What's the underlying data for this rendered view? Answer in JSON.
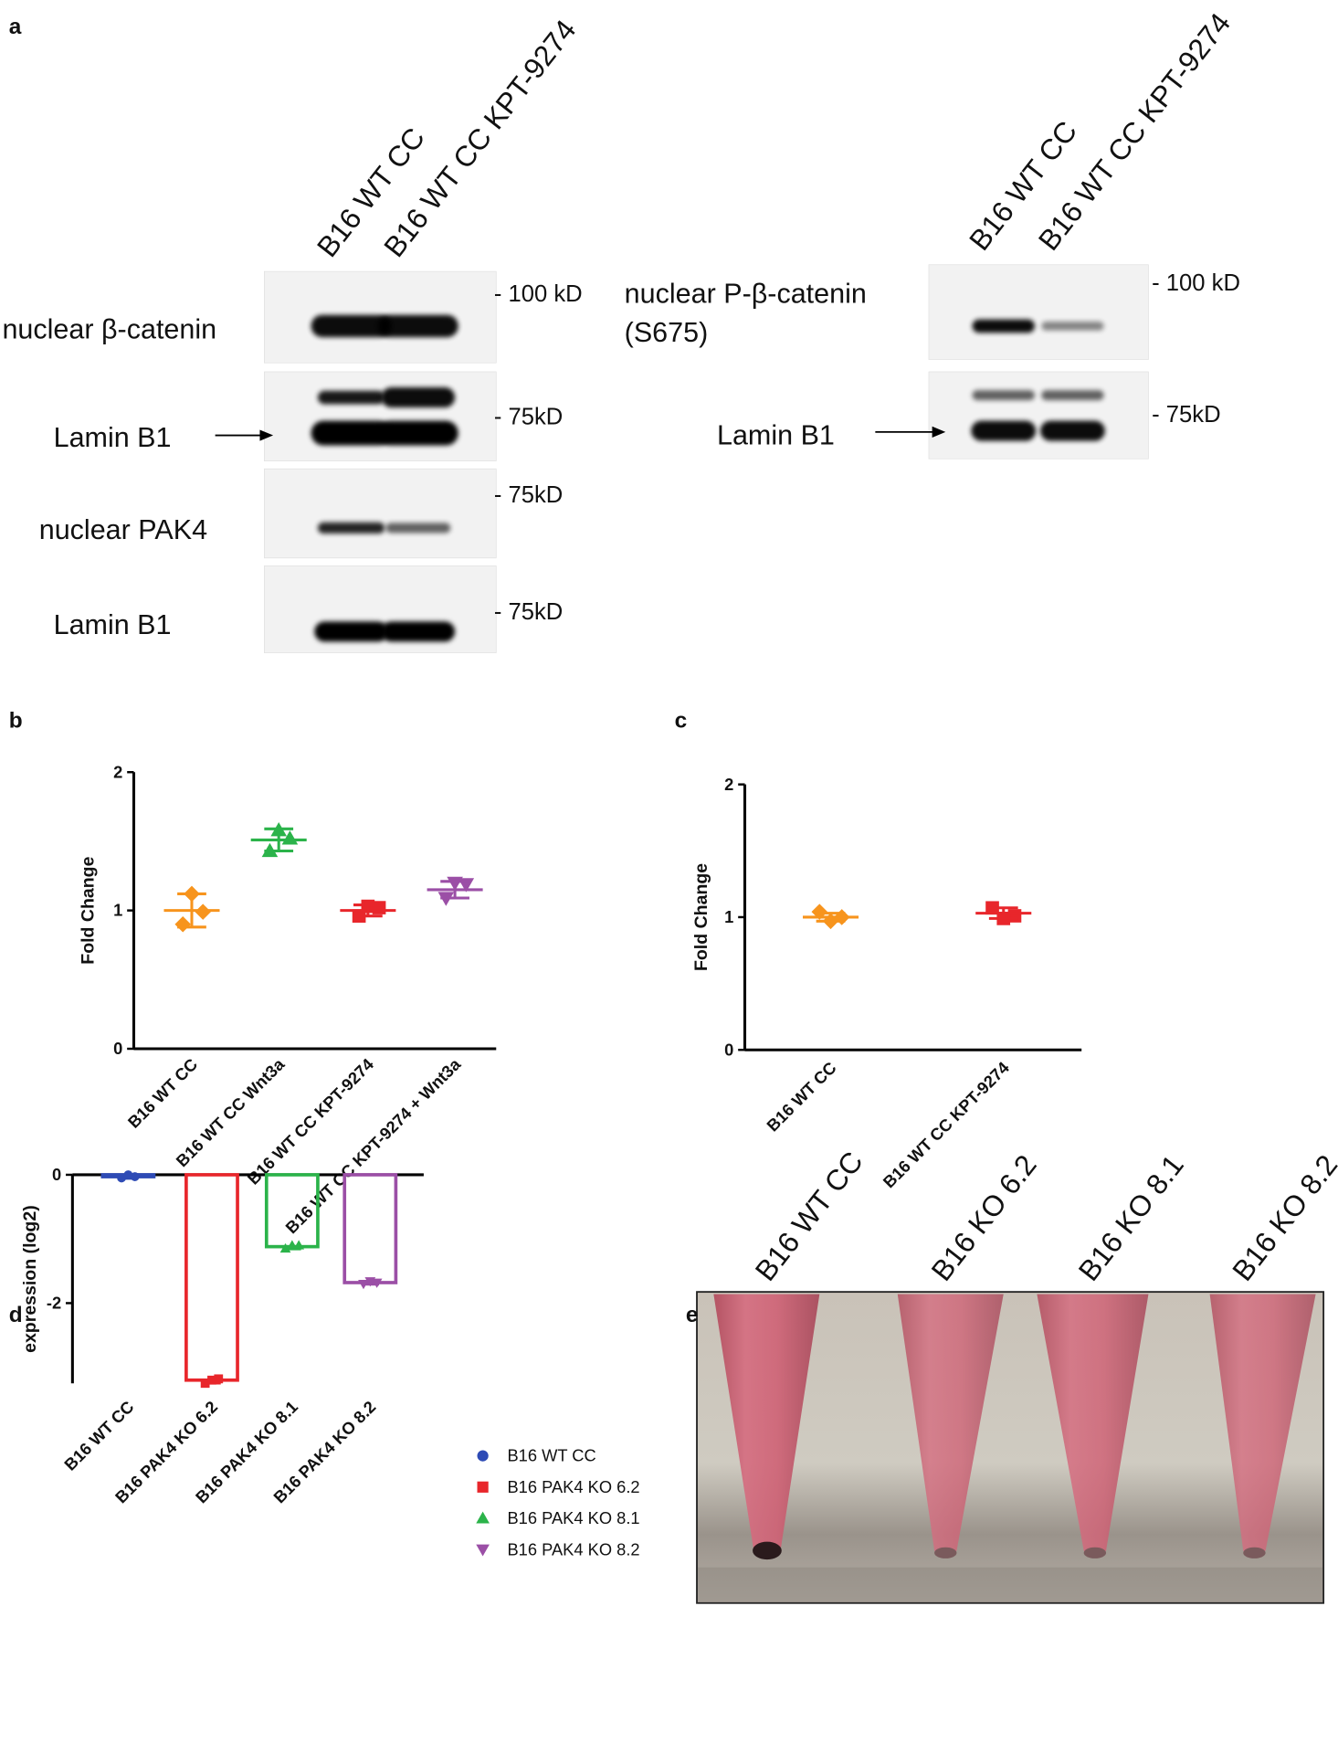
{
  "figure": {
    "panel_labels": [
      "a",
      "b",
      "c",
      "d",
      "e"
    ],
    "blots": [
      {
        "lanes": [
          "B16 WT CC",
          "B16 WT CC KPT-9274"
        ],
        "rows": [
          {
            "label": "nuclear β-catenin",
            "marker": "- 100 kD"
          },
          {
            "label": "Lamin B1",
            "marker": "- 75kD"
          },
          {
            "label": "nuclear PAK4",
            "marker": "- 75kD"
          },
          {
            "label": "Lamin B1",
            "marker": "- 75kD"
          }
        ]
      },
      {
        "lanes": [
          "B16 WT CC",
          "B16 WT CC KPT-9274"
        ],
        "rows": [
          {
            "label": [
              "nuclear P-β-catenin",
              "(S675)"
            ],
            "marker": "- 100 kD"
          },
          {
            "label": "Lamin B1",
            "marker": "- 75kD"
          }
        ]
      }
    ],
    "tube_labels": [
      "B16 WT CC",
      "B16 KO 6.2",
      "B16 KO 8.1",
      "B16 KO 8.2"
    ]
  },
  "chart_data": [
    {
      "type": "dotplot",
      "ylabel": "Fold Change",
      "categories": [
        "B16 WT CC",
        "B16 WT CC Wnt3a",
        "B16 WT CC KPT-9274",
        "B16 WT CC KPT-9274 + Wnt3a"
      ],
      "colors": [
        "#f7941d",
        "#2bb34a",
        "#e8262b",
        "#9b4fa6"
      ],
      "markers": [
        "diamond",
        "triangle",
        "square",
        "triangle-down"
      ],
      "points": [
        [
          1.12,
          0.99,
          0.9
        ],
        [
          1.58,
          1.52,
          1.43
        ],
        [
          1.03,
          1.02,
          0.96
        ],
        [
          1.2,
          1.19,
          1.09
        ]
      ],
      "means": [
        1.0,
        1.51,
        1.0,
        1.15
      ],
      "sd": [
        0.12,
        0.08,
        0.04,
        0.06
      ],
      "ylim": [
        0,
        2
      ],
      "yticks": [
        0,
        1,
        2
      ]
    },
    {
      "type": "dotplot",
      "ylabel": "Fold Change",
      "categories": [
        "B16 WT CC",
        "B16 WT CC KPT-9274"
      ],
      "colors": [
        "#f7941d",
        "#e8262b"
      ],
      "markers": [
        "diamond",
        "square"
      ],
      "points": [
        [
          1.04,
          1.0,
          0.97
        ],
        [
          1.07,
          1.01,
          0.99
        ]
      ],
      "means": [
        1.0,
        1.03
      ],
      "sd": [
        0.03,
        0.04
      ],
      "ylim": [
        0,
        2
      ],
      "yticks": [
        0,
        1,
        2
      ]
    },
    {
      "type": "bar",
      "ylabel": "expression (log2)",
      "categories": [
        "B16 WT CC",
        "B16 PAK4 KO 6.2",
        "B16 PAK4 KO 8.1",
        "B16 PAK4 KO 8.2"
      ],
      "series": [
        {
          "name": "B16 WT CC",
          "color": "#2e4bb5",
          "marker": "circle"
        },
        {
          "name": "B16 PAK4 KO 6.2",
          "color": "#e8262b",
          "marker": "square"
        },
        {
          "name": "B16 PAK4 KO 8.1",
          "color": "#2bb34a",
          "marker": "triangle"
        },
        {
          "name": "B16 PAK4 KO 8.2",
          "color": "#9b4fa6",
          "marker": "triangle-down"
        }
      ],
      "values": [
        -0.03,
        -3.2,
        -1.12,
        -1.68
      ],
      "points": [
        [
          -0.05,
          -0.03,
          0.0
        ],
        [
          -3.25,
          -3.18,
          -3.2
        ],
        [
          -1.15,
          -1.1,
          -1.1
        ],
        [
          -1.7,
          -1.68,
          -1.66
        ]
      ],
      "sd": [
        0.03,
        0.05,
        0.04,
        0.03
      ],
      "ylim": [
        -3.25,
        0
      ],
      "yticks": [
        -2,
        0
      ]
    }
  ]
}
